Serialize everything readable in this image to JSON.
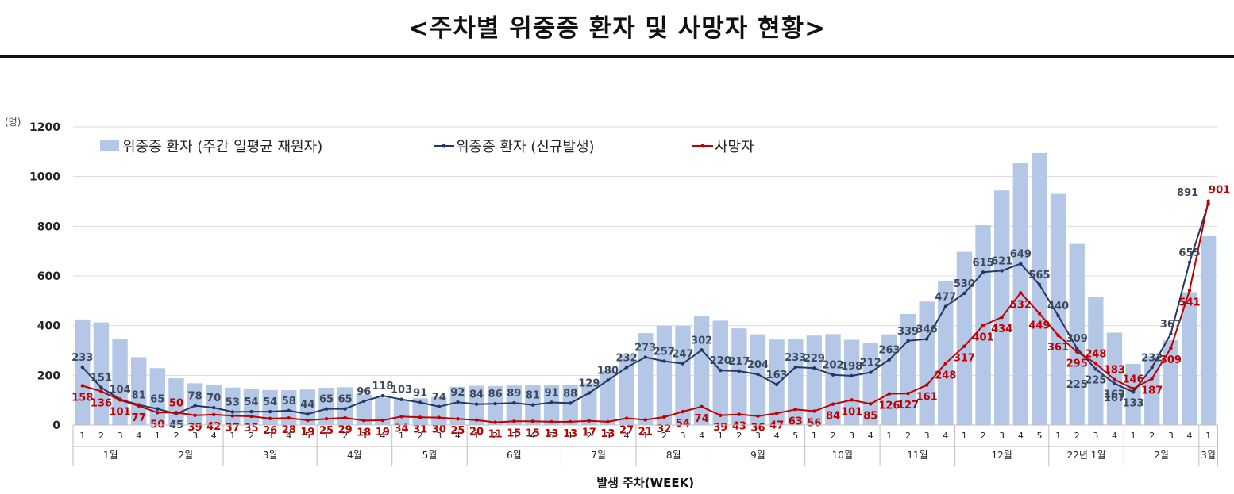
{
  "title": "<주차별 위중증 환자 및 사망자 현황>",
  "chart_data": {
    "type": "bar",
    "title": "<주차별 위중증 환자 및 사망자 현황>",
    "y_unit": "(명)",
    "xlabel": "발생 주차(WEEK)",
    "ylim": [
      0,
      1200
    ],
    "yticks": [
      0,
      200,
      400,
      600,
      800,
      1000,
      1200
    ],
    "grid": true,
    "legend_position": "top-left",
    "colors": {
      "bars": "#b4c7e7",
      "blue_line": "#1f3864",
      "red_line": "#c00000"
    },
    "legend": {
      "bars": "위중증 환자 (주간 일평균 재원자)",
      "blue": "위중증 환자 (신규발생)",
      "red": "사망자"
    },
    "weeks": [
      "1",
      "2",
      "3",
      "4",
      "1",
      "2",
      "3",
      "4",
      "1",
      "2",
      "3",
      "4",
      "5",
      "1",
      "2",
      "3",
      "4",
      "1",
      "2",
      "3",
      "4",
      "1",
      "2",
      "3",
      "4",
      "5",
      "1",
      "2",
      "3",
      "4",
      "1",
      "2",
      "3",
      "4",
      "1",
      "2",
      "3",
      "4",
      "5",
      "1",
      "2",
      "3",
      "4",
      "1",
      "2",
      "3",
      "4",
      "1",
      "2",
      "3",
      "4",
      "5",
      "1",
      "2",
      "3",
      "4",
      "1",
      "2",
      "3",
      "4",
      "1"
    ],
    "months": [
      {
        "label": "1월",
        "count": 4
      },
      {
        "label": "2월",
        "count": 4
      },
      {
        "label": "3월",
        "count": 5
      },
      {
        "label": "4월",
        "count": 4
      },
      {
        "label": "5월",
        "count": 4
      },
      {
        "label": "6월",
        "count": 5
      },
      {
        "label": "7월",
        "count": 4
      },
      {
        "label": "8월",
        "count": 4
      },
      {
        "label": "9월",
        "count": 5
      },
      {
        "label": "10월",
        "count": 4
      },
      {
        "label": "11월",
        "count": 4
      },
      {
        "label": "12월",
        "count": 5
      },
      {
        "label": "22년 1월",
        "count": 4
      },
      {
        "label": "2월",
        "count": 4
      },
      {
        "label": "3월",
        "count": 1
      }
    ],
    "series": [
      {
        "name": "위중증 환자 (주간 일평균 재원자)",
        "type": "bar",
        "values": [
          425,
          413,
          345,
          273,
          229,
          188,
          168,
          162,
          151,
          144,
          141,
          140,
          143,
          150,
          152,
          123,
          110,
          103,
          108,
          113,
          154,
          158,
          157,
          159,
          160,
          161,
          162,
          168,
          219,
          281,
          370,
          399,
          399,
          440,
          420,
          389,
          365,
          344,
          348,
          360,
          366,
          343,
          332,
          365,
          447,
          497,
          578,
          697,
          804,
          944,
          1054,
          1095,
          930,
          729,
          515,
          372,
          246,
          278,
          342,
          535,
          763
        ]
      },
      {
        "name": "위중증 환자 (신규발생)",
        "type": "line",
        "values": [
          233,
          151,
          104,
          81,
          65,
          45,
          78,
          70,
          53,
          54,
          54,
          58,
          44,
          65,
          65,
          96,
          118,
          103,
          91,
          74,
          92,
          84,
          86,
          89,
          81,
          91,
          88,
          129,
          180,
          232,
          273,
          257,
          247,
          302,
          220,
          217,
          204,
          163,
          233,
          229,
          202,
          198,
          212,
          263,
          339,
          346,
          477,
          530,
          615,
          621,
          649,
          565,
          440,
          309,
          225,
          167,
          133,
          232,
          367,
          655,
          891
        ]
      },
      {
        "name": "사망자",
        "type": "line",
        "values": [
          158,
          136,
          101,
          77,
          50,
          50,
          39,
          42,
          37,
          35,
          26,
          28,
          19,
          25,
          29,
          18,
          19,
          34,
          31,
          30,
          25,
          20,
          11,
          15,
          15,
          13,
          13,
          17,
          13,
          27,
          21,
          32,
          54,
          74,
          39,
          43,
          36,
          47,
          63,
          56,
          84,
          101,
          85,
          126,
          127,
          161,
          248,
          317,
          401,
          434,
          532,
          449,
          361,
          295,
          248,
          183,
          146,
          187,
          309,
          541,
          901
        ]
      }
    ],
    "extra_labels": [
      "225",
      "167"
    ]
  }
}
